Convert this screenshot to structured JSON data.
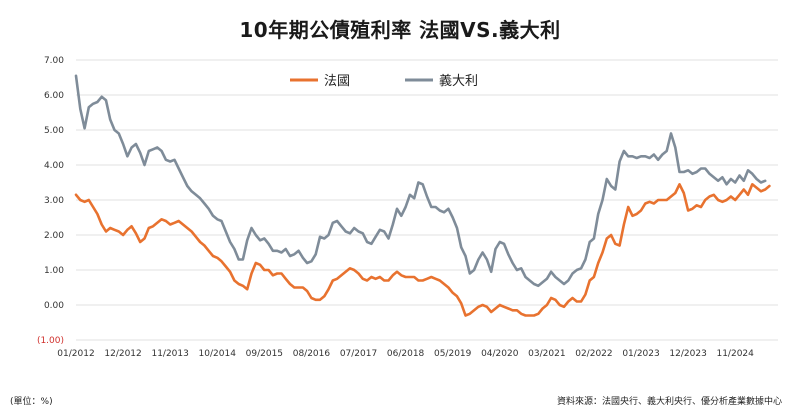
{
  "title": "10年期公債殖利率  法國VS.義大利",
  "unit_note": "(單位：%)",
  "source": "資料來源：法國央行、義大利央行、優分析產業數據中心",
  "chart_data": {
    "type": "line",
    "title": "10年期公債殖利率  法國VS.義大利",
    "ylim": [
      -1.0,
      7.0
    ],
    "y_ticks": [
      {
        "value": 7,
        "label": "7.00",
        "negative": false
      },
      {
        "value": 6,
        "label": "6.00",
        "negative": false
      },
      {
        "value": 5,
        "label": "5.00",
        "negative": false
      },
      {
        "value": 4,
        "label": "4.00",
        "negative": false
      },
      {
        "value": 3,
        "label": "3.00",
        "negative": false
      },
      {
        "value": 2,
        "label": "2.00",
        "negative": false
      },
      {
        "value": 1,
        "label": "1.00",
        "negative": false
      },
      {
        "value": 0,
        "label": "0.00",
        "negative": false
      },
      {
        "value": -1,
        "label": "(1.00)",
        "negative": true
      }
    ],
    "x_ticks": [
      {
        "label": "01/2012",
        "index": 0
      },
      {
        "label": "12/2012",
        "index": 11
      },
      {
        "label": "11/2013",
        "index": 22
      },
      {
        "label": "10/2014",
        "index": 33
      },
      {
        "label": "09/2015",
        "index": 44
      },
      {
        "label": "08/2016",
        "index": 55
      },
      {
        "label": "07/2017",
        "index": 66
      },
      {
        "label": "06/2018",
        "index": 77
      },
      {
        "label": "05/2019",
        "index": 88
      },
      {
        "label": "04/2020",
        "index": 99
      },
      {
        "label": "03/2021",
        "index": 110
      },
      {
        "label": "02/2022",
        "index": 121
      },
      {
        "label": "01/2023",
        "index": 132
      },
      {
        "label": "12/2023",
        "index": 143
      },
      {
        "label": "11/2024",
        "index": 154
      }
    ],
    "x_range": [
      0,
      164
    ],
    "legend_position": "top-center",
    "series": [
      {
        "name": "法國",
        "color": "#E8722F",
        "values": [
          3.15,
          3.0,
          2.95,
          3.0,
          2.8,
          2.6,
          2.3,
          2.1,
          2.2,
          2.15,
          2.1,
          2.0,
          2.15,
          2.25,
          2.05,
          1.8,
          1.9,
          2.2,
          2.25,
          2.35,
          2.45,
          2.4,
          2.3,
          2.35,
          2.4,
          2.3,
          2.2,
          2.1,
          1.95,
          1.8,
          1.7,
          1.55,
          1.4,
          1.35,
          1.25,
          1.1,
          0.95,
          0.7,
          0.6,
          0.55,
          0.45,
          0.9,
          1.2,
          1.15,
          1.0,
          1.0,
          0.85,
          0.9,
          0.9,
          0.75,
          0.6,
          0.5,
          0.5,
          0.5,
          0.4,
          0.2,
          0.15,
          0.15,
          0.25,
          0.45,
          0.7,
          0.75,
          0.85,
          0.95,
          1.05,
          1.0,
          0.9,
          0.75,
          0.7,
          0.8,
          0.75,
          0.8,
          0.7,
          0.7,
          0.85,
          0.95,
          0.85,
          0.8,
          0.8,
          0.8,
          0.7,
          0.7,
          0.75,
          0.8,
          0.75,
          0.7,
          0.6,
          0.5,
          0.35,
          0.25,
          0.05,
          -0.3,
          -0.25,
          -0.15,
          -0.05,
          0.0,
          -0.05,
          -0.2,
          -0.1,
          0.0,
          -0.05,
          -0.1,
          -0.15,
          -0.15,
          -0.25,
          -0.3,
          -0.3,
          -0.3,
          -0.25,
          -0.1,
          0.0,
          0.2,
          0.15,
          0.0,
          -0.05,
          0.1,
          0.2,
          0.1,
          0.1,
          0.3,
          0.7,
          0.8,
          1.2,
          1.5,
          1.9,
          2.0,
          1.75,
          1.7,
          2.3,
          2.8,
          2.55,
          2.6,
          2.7,
          2.9,
          2.95,
          2.9,
          3.0,
          3.0,
          3.0,
          3.1,
          3.2,
          3.45,
          3.2,
          2.7,
          2.75,
          2.85,
          2.8,
          3.0,
          3.1,
          3.15,
          3.0,
          2.95,
          3.0,
          3.1,
          3.0,
          3.15,
          3.3,
          3.15,
          3.45,
          3.35,
          3.25,
          3.3,
          3.4
        ]
      },
      {
        "name": "義大利",
        "color": "#7F8C99",
        "values": [
          6.55,
          5.6,
          5.05,
          5.65,
          5.75,
          5.8,
          5.95,
          5.85,
          5.3,
          5.0,
          4.9,
          4.6,
          4.25,
          4.5,
          4.6,
          4.35,
          4.0,
          4.4,
          4.45,
          4.5,
          4.4,
          4.15,
          4.1,
          4.15,
          3.9,
          3.65,
          3.4,
          3.25,
          3.15,
          3.05,
          2.9,
          2.75,
          2.55,
          2.45,
          2.4,
          2.1,
          1.8,
          1.6,
          1.3,
          1.3,
          1.85,
          2.2,
          2.0,
          1.85,
          1.9,
          1.75,
          1.55,
          1.55,
          1.5,
          1.6,
          1.4,
          1.45,
          1.55,
          1.35,
          1.2,
          1.25,
          1.45,
          1.95,
          1.9,
          2.0,
          2.35,
          2.4,
          2.25,
          2.1,
          2.05,
          2.2,
          2.1,
          2.05,
          1.8,
          1.75,
          1.95,
          2.15,
          2.1,
          1.9,
          2.3,
          2.75,
          2.55,
          2.8,
          3.15,
          3.05,
          3.5,
          3.45,
          3.1,
          2.8,
          2.8,
          2.7,
          2.65,
          2.75,
          2.5,
          2.2,
          1.65,
          1.4,
          0.9,
          1.0,
          1.3,
          1.5,
          1.3,
          0.95,
          1.6,
          1.8,
          1.75,
          1.45,
          1.2,
          1.0,
          1.05,
          0.8,
          0.7,
          0.6,
          0.55,
          0.65,
          0.75,
          0.95,
          0.8,
          0.7,
          0.6,
          0.7,
          0.9,
          1.0,
          1.05,
          1.3,
          1.8,
          1.9,
          2.6,
          3.0,
          3.6,
          3.4,
          3.3,
          4.1,
          4.4,
          4.25,
          4.25,
          4.2,
          4.25,
          4.25,
          4.2,
          4.3,
          4.15,
          4.3,
          4.4,
          4.9,
          4.5,
          3.8,
          3.8,
          3.85,
          3.75,
          3.8,
          3.9,
          3.9,
          3.75,
          3.65,
          3.55,
          3.65,
          3.45,
          3.6,
          3.5,
          3.7,
          3.55,
          3.85,
          3.75,
          3.6,
          3.5,
          3.55
        ]
      }
    ]
  }
}
